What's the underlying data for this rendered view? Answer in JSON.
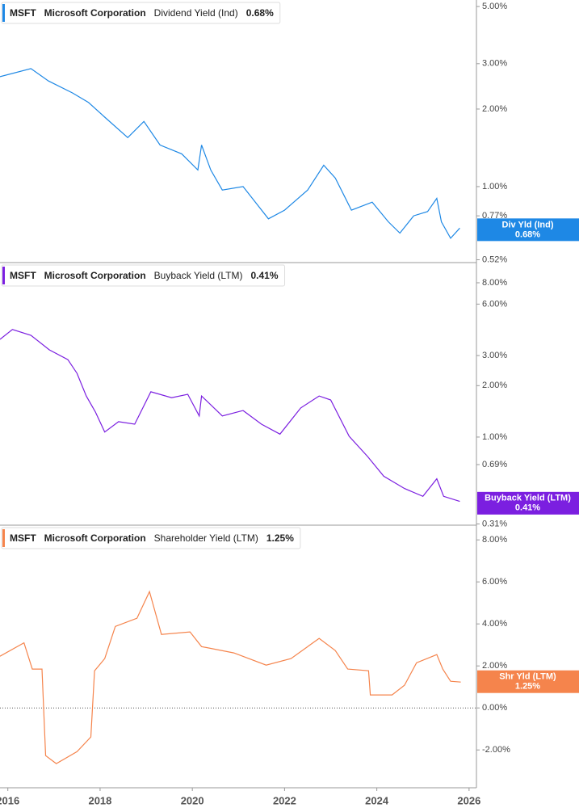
{
  "chart_data": [
    {
      "type": "line",
      "ticker": "MSFT",
      "company": "Microsoft Corporation",
      "title": "Dividend Yield (Ind)",
      "log_scale": true,
      "ylim": [
        0.507,
        5.3
      ],
      "xlim": [
        2015.83,
        2026.16
      ],
      "yticks": [
        {
          "value": 5,
          "label": "5.00%"
        },
        {
          "value": 3,
          "label": "3.00%"
        },
        {
          "value": 2,
          "label": "2.00%"
        },
        {
          "value": 1,
          "label": "1.00%"
        },
        {
          "value": 0.77,
          "label": "0.77%"
        },
        {
          "value": 0.52,
          "label": "0.52%"
        }
      ],
      "x": [
        2015.83,
        2016.5,
        2016.88,
        2017.4,
        2017.75,
        2018.1,
        2018.6,
        2018.95,
        2019.3,
        2019.77,
        2020.12,
        2020.2,
        2020.4,
        2020.65,
        2021.1,
        2021.65,
        2022.0,
        2022.5,
        2022.85,
        2023.1,
        2023.45,
        2023.9,
        2024.25,
        2024.5,
        2024.8,
        2025.1,
        2025.3,
        2025.4,
        2025.6,
        2025.8
      ],
      "series": [
        {
          "name": "Div Yld (Ind)",
          "color": "#1e88e5",
          "values": [
            2.67,
            2.87,
            2.57,
            2.31,
            2.12,
            1.86,
            1.55,
            1.79,
            1.45,
            1.34,
            1.16,
            1.45,
            1.16,
            0.97,
            1.0,
            0.75,
            0.81,
            0.97,
            1.21,
            1.08,
            0.81,
            0.87,
            0.73,
            0.66,
            0.77,
            0.8,
            0.9,
            0.73,
            0.63,
            0.69
          ],
          "last_value": 0.68,
          "last_label": "0.68%"
        }
      ]
    },
    {
      "type": "line",
      "ticker": "MSFT",
      "company": "Microsoft Corporation",
      "title": "Buyback Yield (LTM)",
      "log_scale": true,
      "ylim": [
        0.305,
        10.5
      ],
      "xlim": [
        2015.83,
        2026.16
      ],
      "yticks": [
        {
          "value": 8,
          "label": "8.00%"
        },
        {
          "value": 6,
          "label": "6.00%"
        },
        {
          "value": 3,
          "label": "3.00%"
        },
        {
          "value": 2,
          "label": "2.00%"
        },
        {
          "value": 1,
          "label": "1.00%"
        },
        {
          "value": 0.69,
          "label": "0.69%"
        },
        {
          "value": 0.31,
          "label": "0.31%"
        }
      ],
      "x": [
        2015.83,
        2016.1,
        2016.5,
        2016.9,
        2017.3,
        2017.5,
        2017.7,
        2017.9,
        2018.1,
        2018.4,
        2018.75,
        2019.1,
        2019.55,
        2019.9,
        2020.15,
        2020.2,
        2020.65,
        2021.1,
        2021.5,
        2021.9,
        2022.35,
        2022.75,
        2023.0,
        2023.4,
        2023.8,
        2024.15,
        2024.6,
        2025.0,
        2025.3,
        2025.45,
        2025.8
      ],
      "series": [
        {
          "name": "Buyback Yield (LTM)",
          "color": "#7b1fe0",
          "values": [
            3.73,
            4.26,
            3.94,
            3.24,
            2.84,
            2.36,
            1.74,
            1.4,
            1.07,
            1.23,
            1.19,
            1.84,
            1.7,
            1.78,
            1.33,
            1.74,
            1.33,
            1.43,
            1.19,
            1.04,
            1.48,
            1.74,
            1.65,
            1.01,
            0.77,
            0.59,
            0.5,
            0.45,
            0.57,
            0.45,
            0.42
          ],
          "last_value": 0.41,
          "last_label": "0.41%"
        }
      ]
    },
    {
      "type": "line",
      "ticker": "MSFT",
      "company": "Microsoft Corporation",
      "title": "Shareholder Yield (LTM)",
      "log_scale": false,
      "zero_line": true,
      "ylim": [
        -3.8,
        8.7
      ],
      "xlim": [
        2015.83,
        2026.16
      ],
      "yticks": [
        {
          "value": 8,
          "label": "8.00%"
        },
        {
          "value": 6,
          "label": "6.00%"
        },
        {
          "value": 4,
          "label": "4.00%"
        },
        {
          "value": 2,
          "label": "2.00%"
        },
        {
          "value": 0,
          "label": "0.00%"
        },
        {
          "value": -2,
          "label": "-2.00%"
        }
      ],
      "xticks": [
        2016,
        2018,
        2020,
        2022,
        2024,
        2026
      ],
      "x": [
        2015.83,
        2016.35,
        2016.53,
        2016.74,
        2016.82,
        2017.05,
        2017.5,
        2017.8,
        2017.88,
        2018.1,
        2018.33,
        2018.8,
        2019.07,
        2019.33,
        2019.95,
        2020.2,
        2020.9,
        2021.6,
        2022.14,
        2022.75,
        2023.1,
        2023.37,
        2023.82,
        2023.86,
        2024.33,
        2024.6,
        2024.86,
        2025.3,
        2025.43,
        2025.6,
        2025.82
      ],
      "series": [
        {
          "name": "Shr Yld (LTM)",
          "color": "#f5844c",
          "values": [
            2.46,
            3.1,
            1.85,
            1.85,
            -2.27,
            -2.65,
            -2.08,
            -1.38,
            1.77,
            2.35,
            3.88,
            4.27,
            5.54,
            3.5,
            3.62,
            2.92,
            2.62,
            2.04,
            2.35,
            3.31,
            2.73,
            1.85,
            1.77,
            0.62,
            0.62,
            1.08,
            2.15,
            2.54,
            1.85,
            1.27,
            1.23
          ],
          "last_value": 1.25,
          "last_label": "1.25%"
        }
      ]
    }
  ]
}
